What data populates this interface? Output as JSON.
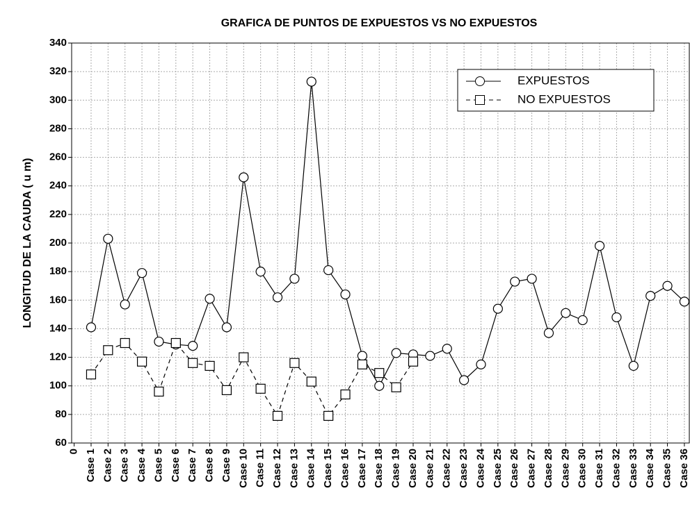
{
  "chart_data": {
    "type": "line",
    "title": "GRAFICA DE PUNTOS DE EXPUESTOS VS NO EXPUESTOS",
    "y_label": "LONGITUD DE LA CAUDA ( u m)",
    "categories": [
      "0",
      "Case 1",
      "Case 2",
      "Case 3",
      "Case 4",
      "Case 5",
      "Case 6",
      "Case 7",
      "Case 8",
      "Case 9",
      "Case 10",
      "Case 11",
      "Case 12",
      "Case 13",
      "Case 14",
      "Case 15",
      "Case 16",
      "Case 17",
      "Case 18",
      "Case 19",
      "Case 20",
      "Case 21",
      "Case 22",
      "Case 23",
      "Case 24",
      "Case 25",
      "Case 26",
      "Case 27",
      "Case 28",
      "Case 29",
      "Case 30",
      "Case 31",
      "Case 32",
      "Case 33",
      "Case 34",
      "Case 35",
      "Case 36"
    ],
    "series": [
      {
        "name": "EXPUESTOS",
        "color": "#000000",
        "marker": "circle",
        "line_style": "solid",
        "values": [
          null,
          141,
          203,
          157,
          179,
          131,
          129,
          128,
          161,
          141,
          246,
          180,
          162,
          175,
          313,
          181,
          164,
          121,
          100,
          123,
          122,
          121,
          126,
          104,
          115,
          154,
          173,
          175,
          137,
          151,
          146,
          198,
          148,
          114,
          163,
          170,
          159
        ]
      },
      {
        "name": "NO EXPUESTOS",
        "color": "#000000",
        "marker": "square",
        "line_style": "dashed",
        "values": [
          null,
          108,
          125,
          130,
          117,
          96,
          130,
          116,
          114,
          97,
          120,
          98,
          79,
          116,
          103,
          79,
          94,
          115,
          109,
          99,
          117,
          null,
          null,
          null,
          null,
          null,
          null,
          null,
          null,
          null,
          null,
          null,
          null,
          null,
          null,
          null,
          null
        ]
      }
    ],
    "ylim": [
      60,
      340
    ],
    "yticks": [
      60,
      80,
      100,
      120,
      140,
      160,
      180,
      200,
      220,
      240,
      260,
      280,
      300,
      320,
      340
    ],
    "grid": true,
    "legend": "upper right"
  }
}
